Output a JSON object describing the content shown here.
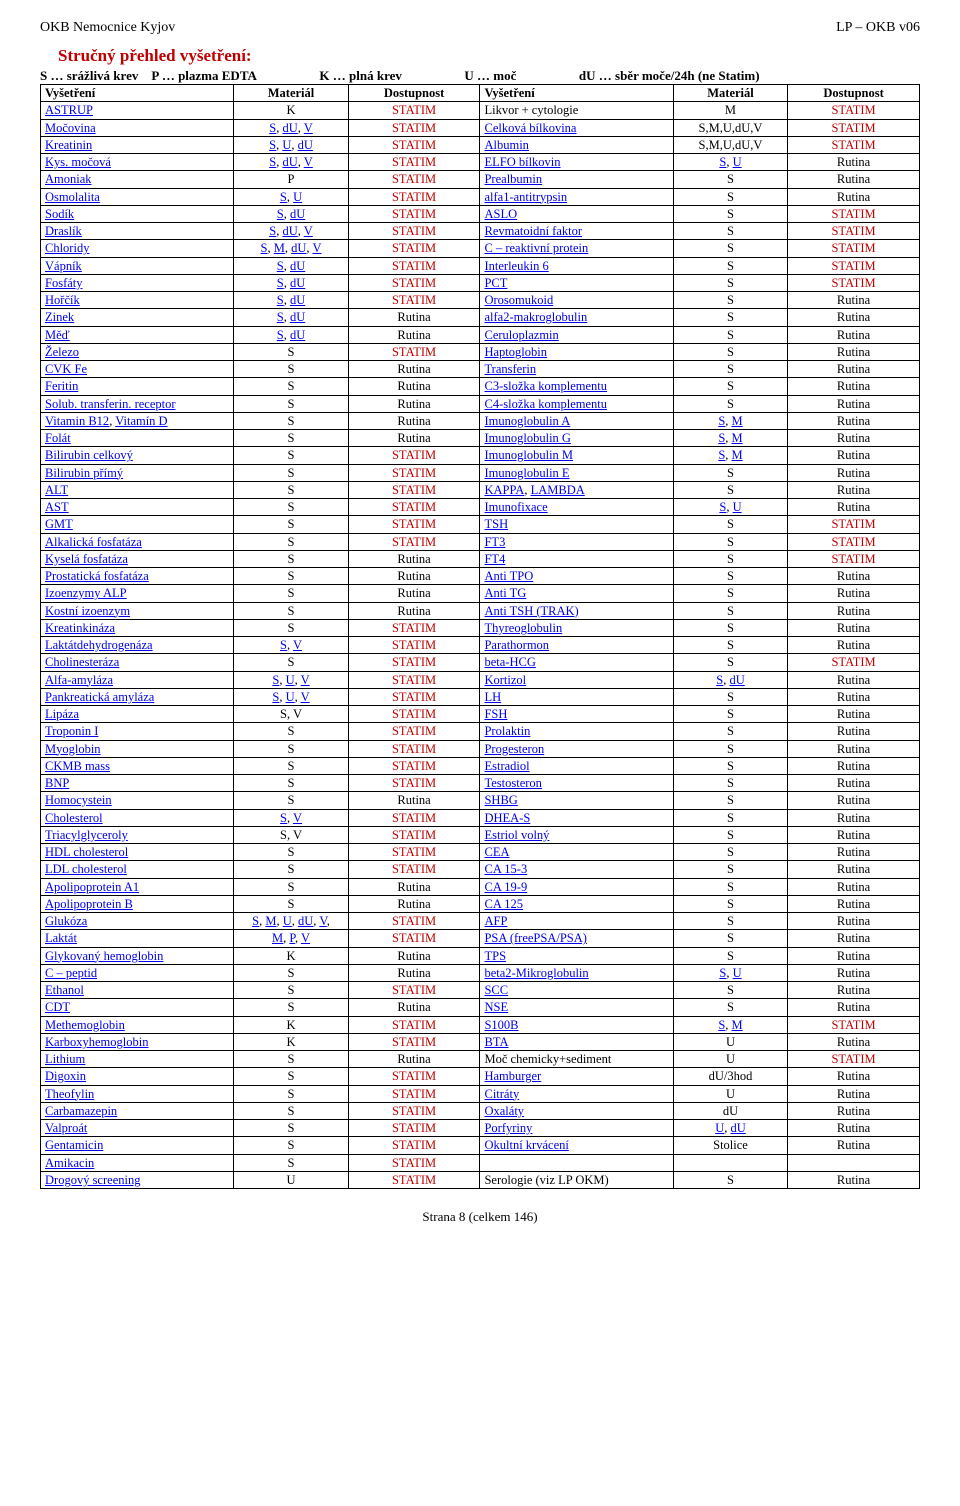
{
  "header": {
    "left": "OKB Nemocnice Kyjov",
    "right": "LP – OKB v06"
  },
  "title": "Stručný přehled vyšetření:",
  "legend": {
    "s": "S … srážlivá krev",
    "p": "P … plazma EDTA",
    "k": "K … plná krev",
    "u": "U … moč",
    "du": "dU … sběr moče/24h (ne Statim)"
  },
  "columns": [
    "Vyšetření",
    "Materiál",
    "Dostupnost",
    "Vyšetření",
    "Materiál",
    "Dostupnost"
  ],
  "footer": "Strana 8 (celkem 146)",
  "rows": [
    [
      "ASTRUP",
      "K",
      "STATIM",
      "Likvor + cytologie",
      "M",
      "STATIM",
      "a:l|b:c|c:cr|d:|e:c|f:cr"
    ],
    [
      "Močovina",
      "S, dU, V",
      "STATIM",
      "Celková bílkovina",
      "S,M,U,dU,V",
      "STATIM",
      "a:l|b:cl|c:cr|d:l|e:c|f:cr"
    ],
    [
      "Kreatinin",
      "S, U, dU",
      "STATIM",
      "Albumin",
      "S,M,U,dU,V",
      "STATIM",
      "a:l|b:cl|c:cr|d:l|e:c|f:cr"
    ],
    [
      "Kys. močová",
      "S, dU, V",
      "STATIM",
      "ELFO bílkovin",
      "S, U",
      "Rutina",
      "a:l|b:cl|c:cr|d:l|e:cl|f:c"
    ],
    [
      "Amoniak",
      "P",
      "STATIM",
      "Prealbumin",
      "S",
      "Rutina",
      "a:l|b:c|c:cr|d:l|e:c|f:c"
    ],
    [
      "Osmolalita",
      "S, U",
      "STATIM",
      "alfa1-antitrypsin",
      "S",
      "Rutina",
      "a:l|b:cl|c:cr|d:l|e:c|f:c"
    ],
    [
      "Sodík",
      "S, dU",
      "STATIM",
      "ASLO",
      "S",
      "STATIM",
      "a:l|b:cl|c:cr|d:l|e:c|f:cr"
    ],
    [
      "Draslík",
      "S, dU, V",
      "STATIM",
      "Revmatoidní faktor",
      "S",
      "STATIM",
      "a:l|b:cl|c:cr|d:l|e:c|f:cr"
    ],
    [
      "Chloridy",
      "S, M, dU, V",
      "STATIM",
      "C – reaktivní protein",
      "S",
      "STATIM",
      "a:l|b:cl|c:cr|d:l|e:c|f:cr"
    ],
    [
      "Vápník",
      "S, dU",
      "STATIM",
      "Interleukin 6",
      "S",
      "STATIM",
      "a:l|b:cl|c:cr|d:l|e:c|f:cr"
    ],
    [
      "Fosfáty",
      "S, dU",
      "STATIM",
      "PCT",
      "S",
      "STATIM",
      "a:l|b:cl|c:cr|d:l|e:c|f:cr"
    ],
    [
      "Hořčík",
      "S, dU",
      "STATIM",
      "Orosomukoid",
      "S",
      "Rutina",
      "a:l|b:cl|c:cr|d:l|e:c|f:c"
    ],
    [
      "Zinek",
      "S, dU",
      "Rutina",
      "alfa2-makroglobulin",
      "S",
      "Rutina",
      "a:l|b:cl|c:c|d:l|e:c|f:c"
    ],
    [
      "Měď",
      "S, dU",
      "Rutina",
      "Ceruloplazmin",
      "S",
      "Rutina",
      "a:l|b:cl|c:c|d:l|e:c|f:c"
    ],
    [
      "Železo",
      "S",
      "STATIM",
      "Haptoglobin",
      "S",
      "Rutina",
      "a:l|b:c|c:cr|d:l|e:c|f:c"
    ],
    [
      "CVK Fe",
      "S",
      "Rutina",
      "Transferin",
      "S",
      "Rutina",
      "a:l|b:c|c:c|d:l|e:c|f:c"
    ],
    [
      "Feritin",
      "S",
      "Rutina",
      "C3-složka komplementu",
      "S",
      "Rutina",
      "a:l|b:c|c:c|d:l|e:c|f:c"
    ],
    [
      "Solub. transferin. receptor",
      "S",
      "Rutina",
      "C4-složka komplementu",
      "S",
      "Rutina",
      "a:l|b:c|c:c|d:l|e:c|f:c"
    ],
    [
      "Vitamin B12, Vitamín D",
      "S",
      "Rutina",
      "Imunoglobulin A",
      "S, M",
      "Rutina",
      "a:l|b:c|c:c|d:l|e:cl|f:c"
    ],
    [
      "Folát",
      "S",
      "Rutina",
      "Imunoglobulin G",
      "S, M",
      "Rutina",
      "a:l|b:c|c:c|d:l|e:cl|f:c"
    ],
    [
      "Bilirubin celkový",
      "S",
      "STATIM",
      "Imunoglobulin M",
      "S, M",
      "Rutina",
      "a:l|b:c|c:cr|d:l|e:cl|f:c"
    ],
    [
      "Bilirubin přímý",
      "S",
      "STATIM",
      "Imunoglobulin E",
      "S",
      "Rutina",
      "a:l|b:c|c:cr|d:l|e:c|f:c"
    ],
    [
      "ALT",
      "S",
      "STATIM",
      "KAPPA, LAMBDA",
      "S",
      "Rutina",
      "a:l|b:c|c:cr|d:l|e:c|f:c"
    ],
    [
      "AST",
      "S",
      "STATIM",
      "Imunofixace",
      "S, U",
      "Rutina",
      "a:l|b:c|c:cr|d:l|e:cl|f:c"
    ],
    [
      "GMT",
      "S",
      "STATIM",
      "TSH",
      "S",
      "STATIM",
      "a:l|b:c|c:cr|d:l|e:c|f:cr"
    ],
    [
      "Alkalická fosfatáza",
      "S",
      "STATIM",
      "FT3",
      "S",
      "STATIM",
      "a:l|b:c|c:cr|d:l|e:c|f:cr"
    ],
    [
      "Kyselá fosfatáza",
      "S",
      "Rutina",
      "FT4",
      "S",
      "STATIM",
      "a:l|b:c|c:c|d:l|e:c|f:cr"
    ],
    [
      "Prostatická fosfatáza",
      "S",
      "Rutina",
      "Anti TPO",
      "S",
      "Rutina",
      "a:l|b:c|c:c|d:l|e:c|f:c"
    ],
    [
      "Izoenzymy ALP",
      "S",
      "Rutina",
      "Anti TG",
      "S",
      "Rutina",
      "a:l|b:c|c:c|d:l|e:c|f:c"
    ],
    [
      "Kostní izoenzym",
      "S",
      "Rutina",
      "Anti TSH (TRAK)",
      "S",
      "Rutina",
      "a:l|b:c|c:c|d:l|e:c|f:c"
    ],
    [
      "Kreatinkináza",
      "S",
      "STATIM",
      "Thyreoglobulin",
      "S",
      "Rutina",
      "a:l|b:c|c:cr|d:l|e:c|f:c"
    ],
    [
      "Laktátdehydrogenáza",
      "S, V",
      "STATIM",
      "Parathormon",
      "S",
      "Rutina",
      "a:l|b:cl|c:cr|d:l|e:c|f:c"
    ],
    [
      "Cholinesteráza",
      "S",
      "STATIM",
      "beta-HCG",
      "S",
      "STATIM",
      "a:l|b:c|c:cr|d:l|e:c|f:cr"
    ],
    [
      "Alfa-amyláza",
      "S, U, V",
      "STATIM",
      "Kortizol",
      "S, dU",
      "Rutina",
      "a:l|b:cl|c:cr|d:l|e:cl|f:c"
    ],
    [
      "Pankreatická amyláza",
      "S, U, V",
      "STATIM",
      "LH",
      "S",
      "Rutina",
      "a:l|b:cl|c:cr|d:l|e:c|f:c"
    ],
    [
      "Lipáza",
      "S, V",
      "STATIM",
      "FSH",
      "S",
      "Rutina",
      "a:l|b:c|c:cr|d:l|e:c|f:c"
    ],
    [
      "Troponin I",
      "S",
      "STATIM",
      "Prolaktin",
      "S",
      "Rutina",
      "a:l|b:c|c:cr|d:l|e:c|f:c"
    ],
    [
      "Myoglobin",
      "S",
      "STATIM",
      "Progesteron",
      "S",
      "Rutina",
      "a:l|b:c|c:cr|d:l|e:c|f:c"
    ],
    [
      "CKMB mass",
      "S",
      "STATIM",
      "Estradiol",
      "S",
      "Rutina",
      "a:l|b:c|c:cr|d:l|e:c|f:c"
    ],
    [
      "BNP",
      "S",
      "STATIM",
      "Testosteron",
      "S",
      "Rutina",
      "a:l|b:c|c:cr|d:l|e:c|f:c"
    ],
    [
      "Homocystein",
      "S",
      "Rutina",
      "SHBG",
      "S",
      "Rutina",
      "a:l|b:c|c:c|d:l|e:c|f:c"
    ],
    [
      "Cholesterol",
      "S, V",
      "STATIM",
      "DHEA-S",
      "S",
      "Rutina",
      "a:l|b:cl|c:cr|d:l|e:c|f:c"
    ],
    [
      "Triacylglyceroly",
      "S, V",
      "STATIM",
      "Estriol volný",
      "S",
      "Rutina",
      "a:l|b:c|c:cr|d:l|e:c|f:c"
    ],
    [
      "HDL cholesterol",
      "S",
      "STATIM",
      "CEA",
      "S",
      "Rutina",
      "a:l|b:c|c:cr|d:l|e:c|f:c"
    ],
    [
      "LDL cholesterol",
      "S",
      "STATIM",
      "CA 15-3",
      "S",
      "Rutina",
      "a:l|b:c|c:cr|d:l|e:c|f:c"
    ],
    [
      "Apolipoprotein A1",
      "S",
      "Rutina",
      "CA 19-9",
      "S",
      "Rutina",
      "a:l|b:c|c:c|d:l|e:c|f:c"
    ],
    [
      "Apolipoprotein B",
      "S",
      "Rutina",
      "CA 125",
      "S",
      "Rutina",
      "a:l|b:c|c:c|d:l|e:c|f:c"
    ],
    [
      "Glukóza",
      "S, M, U, dU, V,",
      "STATIM",
      "AFP",
      "S",
      "Rutina",
      "a:l|b:cl|c:cr|d:l|e:c|f:c"
    ],
    [
      "Laktát",
      "M, P, V",
      "STATIM",
      "PSA (freePSA/PSA)",
      "S",
      "Rutina",
      "a:l|b:cl|c:cr|d:l|e:c|f:c"
    ],
    [
      "Glykovaný hemoglobin",
      "K",
      "Rutina",
      "TPS",
      "S",
      "Rutina",
      "a:l|b:c|c:c|d:l|e:c|f:c"
    ],
    [
      "C – peptid",
      "S",
      "Rutina",
      "beta2-Mikroglobulin",
      "S, U",
      "Rutina",
      "a:l|b:c|c:c|d:l|e:cl|f:c"
    ],
    [
      "Ethanol",
      "S",
      "STATIM",
      "SCC",
      "S",
      "Rutina",
      "a:l|b:c|c:cr|d:l|e:c|f:c"
    ],
    [
      "CDT",
      "S",
      "Rutina",
      "NSE",
      "S",
      "Rutina",
      "a:l|b:c|c:c|d:l|e:c|f:c"
    ],
    [
      "Methemoglobin",
      "K",
      "STATIM",
      "S100B",
      "S, M",
      "STATIM",
      "a:l|b:c|c:cr|d:l|e:cl|f:cr"
    ],
    [
      "Karboxyhemoglobin",
      "K",
      "STATIM",
      "BTA",
      "U",
      "Rutina",
      "a:l|b:c|c:cr|d:l|e:c|f:c"
    ],
    [
      "Lithium",
      "S",
      "Rutina",
      "Moč chemicky+sediment",
      "U",
      "STATIM",
      "a:l|b:c|c:c|d:|e:c|f:cr"
    ],
    [
      "Digoxin",
      "S",
      "STATIM",
      "Hamburger",
      "dU/3hod",
      "Rutina",
      "a:l|b:c|c:cr|d:l|e:c|f:c"
    ],
    [
      "Theofylin",
      "S",
      "STATIM",
      "Citráty",
      "U",
      "Rutina",
      "a:l|b:c|c:cr|d:l|e:c|f:c"
    ],
    [
      "Carbamazepin",
      "S",
      "STATIM",
      "Oxaláty",
      "dU",
      "Rutina",
      "a:l|b:c|c:cr|d:l|e:c|f:c"
    ],
    [
      "Valproát",
      "S",
      "STATIM",
      "Porfyriny",
      "U, dU",
      "Rutina",
      "a:l|b:c|c:cr|d:l|e:cl|f:c"
    ],
    [
      "Gentamicin",
      "S",
      "STATIM",
      "Okultní krvácení",
      "Stolice",
      "Rutina",
      "a:l|b:c|c:cr|d:l|e:c|f:c"
    ],
    [
      "Amikacin",
      "S",
      "STATIM",
      "",
      "",
      "",
      "a:l|b:c|c:cr|d:|e:|f:"
    ],
    [
      "Drogový screening",
      "U",
      "STATIM",
      "Serologie (viz LP OKM)",
      "S",
      "Rutina",
      "a:l|b:c|c:cr|d:|e:c|f:c"
    ]
  ]
}
